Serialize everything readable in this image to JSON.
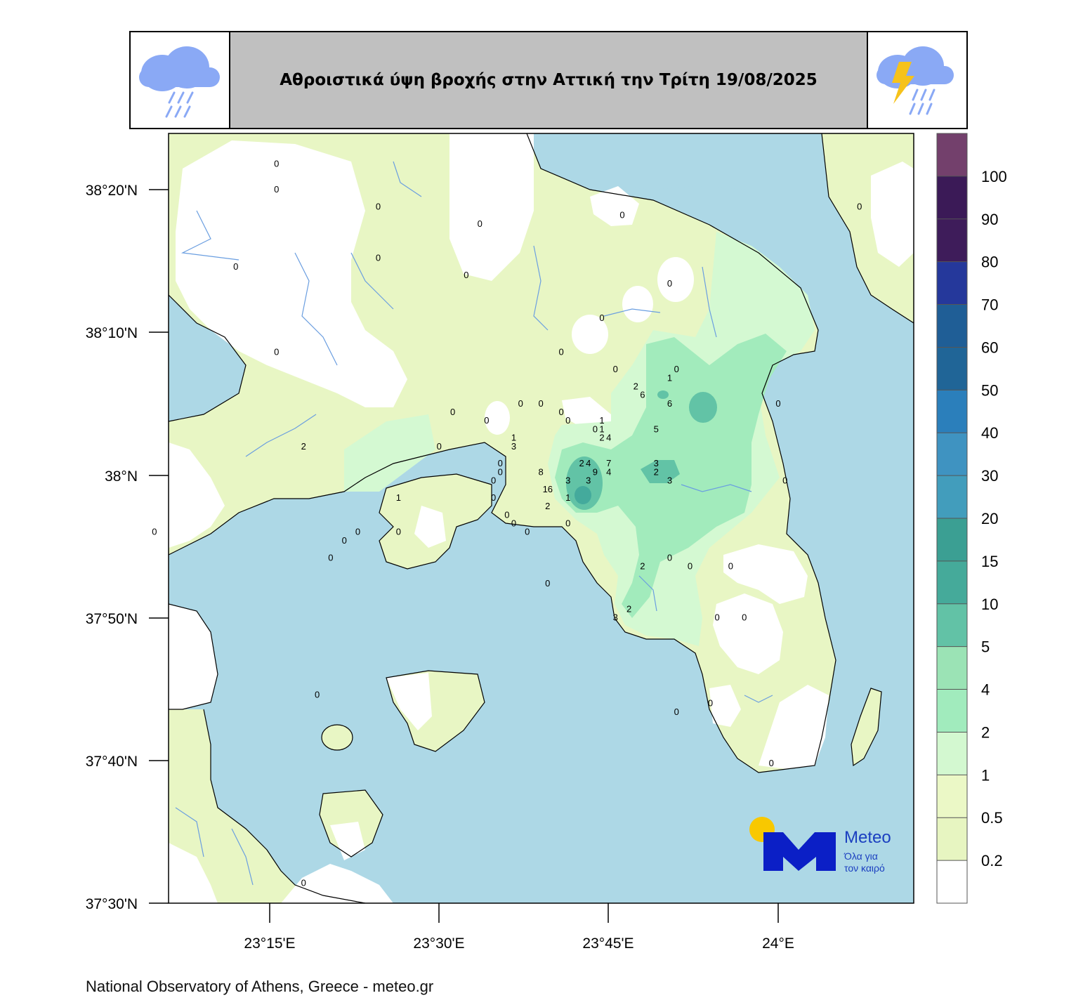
{
  "title": "Αθροιστικά ύψη βροχής στην Αττική την Τρίτη 19/08/2025",
  "icons": {
    "left": "rain-cloud-icon",
    "right": "thunderstorm-cloud-icon"
  },
  "axes": {
    "y_ticks": [
      "38°20'N",
      "38°10'N",
      "38°N",
      "37°50'N",
      "37°40'N",
      "37°30'N"
    ],
    "x_ticks": [
      "23°15'E",
      "23°30'E",
      "23°45'E",
      "24°E"
    ]
  },
  "colorbar": {
    "labels": [
      "100",
      "90",
      "80",
      "70",
      "60",
      "50",
      "40",
      "30",
      "20",
      "15",
      "10",
      "5",
      "4",
      "2",
      "1",
      "0.5",
      "0.2"
    ],
    "colors": [
      "#73406c",
      "#3b1a57",
      "#3e1c5a",
      "#25389b",
      "#1f5e96",
      "#206597",
      "#2b7fbb",
      "#3f93c1",
      "#429dbc",
      "#3b9f93",
      "#45aa9a",
      "#62c2a6",
      "#9be3b5",
      "#a1ebbd",
      "#d3f8d0",
      "#ebf8c6",
      "#e7f5c1",
      "#ffffff"
    ]
  },
  "colors": {
    "sea": "#add8e6",
    "land_0": "#ffffff",
    "land_02": "#e8f6c4",
    "land_1": "#d4f9d2",
    "land_2": "#a2ebbc",
    "land_5": "#62c3a6",
    "land_10": "#44aa9c"
  },
  "station_values": [
    {
      "v": "0",
      "lon": 23.26,
      "lat": 38.36
    },
    {
      "v": "0",
      "lon": 23.26,
      "lat": 38.33
    },
    {
      "v": "0",
      "lon": 23.2,
      "lat": 38.24
    },
    {
      "v": "0",
      "lon": 23.26,
      "lat": 38.14
    },
    {
      "v": "0",
      "lon": 23.41,
      "lat": 38.31
    },
    {
      "v": "0",
      "lon": 23.41,
      "lat": 38.25
    },
    {
      "v": "0",
      "lon": 23.56,
      "lat": 38.29
    },
    {
      "v": "0",
      "lon": 23.54,
      "lat": 38.23
    },
    {
      "v": "0",
      "lon": 23.57,
      "lat": 38.06
    },
    {
      "v": "0",
      "lon": 23.77,
      "lat": 38.3
    },
    {
      "v": "0",
      "lon": 23.84,
      "lat": 38.22
    },
    {
      "v": "0",
      "lon": 23.74,
      "lat": 38.18
    },
    {
      "v": "0",
      "lon": 23.68,
      "lat": 38.14
    },
    {
      "v": "0",
      "lon": 23.85,
      "lat": 38.12
    },
    {
      "v": "1",
      "lon": 23.84,
      "lat": 38.11
    },
    {
      "v": "2",
      "lon": 23.79,
      "lat": 38.1
    },
    {
      "v": "6",
      "lon": 23.8,
      "lat": 38.09
    },
    {
      "v": "6",
      "lon": 23.84,
      "lat": 38.08
    },
    {
      "v": "0",
      "lon": 23.76,
      "lat": 38.12
    },
    {
      "v": "0",
      "lon": 23.62,
      "lat": 38.08
    },
    {
      "v": "0",
      "lon": 23.65,
      "lat": 38.08
    },
    {
      "v": "0",
      "lon": 23.68,
      "lat": 38.07
    },
    {
      "v": "0",
      "lon": 23.69,
      "lat": 38.06
    },
    {
      "v": "0",
      "lon": 23.52,
      "lat": 38.07
    },
    {
      "v": "0",
      "lon": 23.5,
      "lat": 38.03
    },
    {
      "v": "1",
      "lon": 23.74,
      "lat": 38.06
    },
    {
      "v": "1",
      "lon": 23.74,
      "lat": 38.05
    },
    {
      "v": "0",
      "lon": 23.73,
      "lat": 38.05
    },
    {
      "v": "5",
      "lon": 23.82,
      "lat": 38.05
    },
    {
      "v": "2",
      "lon": 23.74,
      "lat": 38.04
    },
    {
      "v": "4",
      "lon": 23.75,
      "lat": 38.04
    },
    {
      "v": "1",
      "lon": 23.61,
      "lat": 38.04
    },
    {
      "v": "3",
      "lon": 23.61,
      "lat": 38.03
    },
    {
      "v": "2",
      "lon": 23.71,
      "lat": 38.01
    },
    {
      "v": "4",
      "lon": 23.72,
      "lat": 38.01
    },
    {
      "v": "9",
      "lon": 23.73,
      "lat": 38.0
    },
    {
      "v": "7",
      "lon": 23.75,
      "lat": 38.01
    },
    {
      "v": "4",
      "lon": 23.75,
      "lat": 38.0
    },
    {
      "v": "3",
      "lon": 23.82,
      "lat": 38.01
    },
    {
      "v": "2",
      "lon": 23.82,
      "lat": 38.0
    },
    {
      "v": "3",
      "lon": 23.84,
      "lat": 37.99
    },
    {
      "v": "8",
      "lon": 23.65,
      "lat": 38.0
    },
    {
      "v": "16",
      "lon": 23.66,
      "lat": 37.98
    },
    {
      "v": "3",
      "lon": 23.69,
      "lat": 37.99
    },
    {
      "v": "3",
      "lon": 23.72,
      "lat": 37.99
    },
    {
      "v": "1",
      "lon": 23.69,
      "lat": 37.97
    },
    {
      "v": "2",
      "lon": 23.66,
      "lat": 37.96
    },
    {
      "v": "0",
      "lon": 23.59,
      "lat": 38.01
    },
    {
      "v": "0",
      "lon": 23.59,
      "lat": 38.0
    },
    {
      "v": "0",
      "lon": 23.58,
      "lat": 37.99
    },
    {
      "v": "0",
      "lon": 23.58,
      "lat": 37.97
    },
    {
      "v": "0",
      "lon": 23.6,
      "lat": 37.95
    },
    {
      "v": "0",
      "lon": 23.61,
      "lat": 37.94
    },
    {
      "v": "0",
      "lon": 23.63,
      "lat": 37.93
    },
    {
      "v": "0",
      "lon": 23.69,
      "lat": 37.94
    },
    {
      "v": "1",
      "lon": 23.44,
      "lat": 37.97
    },
    {
      "v": "0",
      "lon": 23.44,
      "lat": 37.93
    },
    {
      "v": "2",
      "lon": 23.3,
      "lat": 38.03
    },
    {
      "v": "0",
      "lon": 23.38,
      "lat": 37.93
    },
    {
      "v": "0",
      "lon": 23.36,
      "lat": 37.92
    },
    {
      "v": "0",
      "lon": 23.34,
      "lat": 37.9
    },
    {
      "v": "0",
      "lon": 23.08,
      "lat": 37.93
    },
    {
      "v": "0",
      "lon": 23.84,
      "lat": 37.9
    },
    {
      "v": "0",
      "lon": 23.66,
      "lat": 37.87
    },
    {
      "v": "2",
      "lon": 23.8,
      "lat": 37.89
    },
    {
      "v": "2",
      "lon": 23.78,
      "lat": 37.84
    },
    {
      "v": "3",
      "lon": 23.76,
      "lat": 37.83
    },
    {
      "v": "0",
      "lon": 23.87,
      "lat": 37.89
    },
    {
      "v": "0",
      "lon": 23.93,
      "lat": 37.89
    },
    {
      "v": "0",
      "lon": 23.91,
      "lat": 37.83
    },
    {
      "v": "0",
      "lon": 23.95,
      "lat": 37.83
    },
    {
      "v": "0",
      "lon": 23.9,
      "lat": 37.73
    },
    {
      "v": "0",
      "lon": 23.99,
      "lat": 37.66
    },
    {
      "v": "0",
      "lon": 23.85,
      "lat": 37.72
    },
    {
      "v": "0",
      "lon": 24.01,
      "lat": 37.99
    },
    {
      "v": "0",
      "lon": 24.0,
      "lat": 38.08
    },
    {
      "v": "0",
      "lon": 24.12,
      "lat": 38.31
    },
    {
      "v": "0",
      "lon": 23.32,
      "lat": 37.74
    },
    {
      "v": "0",
      "lon": 23.3,
      "lat": 37.52
    }
  ],
  "logo": {
    "name": "Meteo",
    "tagline_1": "Όλα για",
    "tagline_2": "τον καιρό"
  },
  "credit": "National Observatory of Athens, Greece - meteo.gr"
}
